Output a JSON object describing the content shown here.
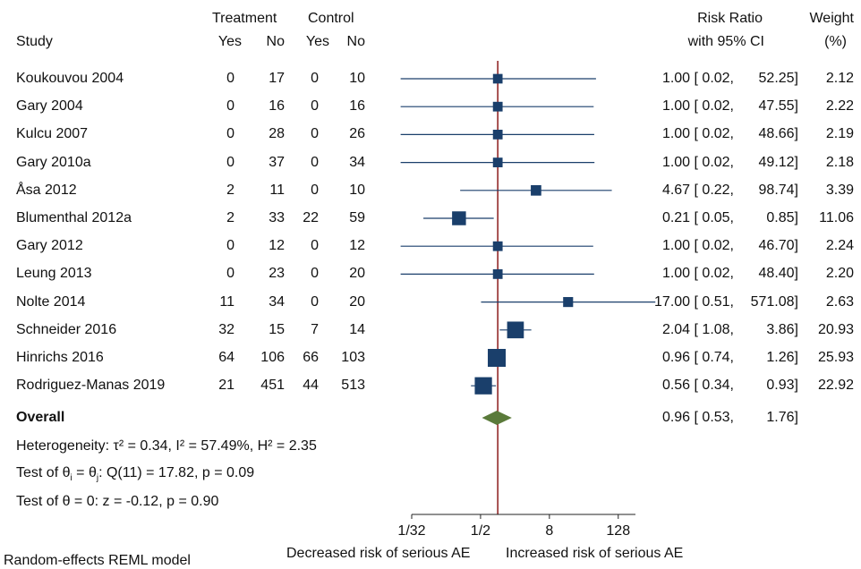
{
  "headers": {
    "study": "Study",
    "treatment": "Treatment",
    "control": "Control",
    "yes1": "Yes",
    "no1": "No",
    "yes2": "Yes",
    "no2": "No",
    "rr_line1": "Risk Ratio",
    "rr_line2": "with 95% CI",
    "weight_line1": "Weight",
    "weight_line2": "(%)"
  },
  "overall": {
    "label": "Overall",
    "text": "0.96 [ 0.53,",
    "upper": "1.76]"
  },
  "heterogeneity": "Heterogeneity: τ² = 0.34, I² = 57.49%, H² = 2.35",
  "test_theta_equal": {
    "prefix": "Test of θ",
    "sub_i": "i",
    "eq": " = θ",
    "sub_j": "j",
    "rest": ": Q(11) = 17.82, p = 0.09"
  },
  "test_theta_zero": "Test of θ = 0: z = -0.12, p = 0.90",
  "model_note": "Random-effects REML model",
  "xaxis": {
    "left_label": "Decreased risk of serious AE",
    "right_label": "Increased risk of serious AE"
  },
  "colors": {
    "marker": "#1a3f6b",
    "diamond": "#5a7a3a",
    "null_line": "#8b1a1a",
    "axis": "#222222"
  },
  "chart_data": {
    "type": "forest",
    "scale": "log2",
    "xlim": [
      0.03125,
      256
    ],
    "ticks": [
      {
        "value": 0.03125,
        "label": "1/32"
      },
      {
        "value": 0.5,
        "label": "1/2"
      },
      {
        "value": 8,
        "label": "8"
      },
      {
        "value": 128,
        "label": "128"
      }
    ],
    "null_value": 1,
    "rows": [
      {
        "study": "Koukouvou 2004",
        "t_yes": "0",
        "t_no": "17",
        "c_yes": "0",
        "c_no": "10",
        "rr": 1.0,
        "lo": 0.02,
        "hi": 52.25,
        "ci_text": "1.00 [ 0.02,",
        "hi_text": "52.25]",
        "weight": "2.12"
      },
      {
        "study": "Gary 2004",
        "t_yes": "0",
        "t_no": "16",
        "c_yes": "0",
        "c_no": "16",
        "rr": 1.0,
        "lo": 0.02,
        "hi": 47.55,
        "ci_text": "1.00 [ 0.02,",
        "hi_text": "47.55]",
        "weight": "2.22"
      },
      {
        "study": "Kulcu 2007",
        "t_yes": "0",
        "t_no": "28",
        "c_yes": "0",
        "c_no": "26",
        "rr": 1.0,
        "lo": 0.02,
        "hi": 48.66,
        "ci_text": "1.00 [ 0.02,",
        "hi_text": "48.66]",
        "weight": "2.19"
      },
      {
        "study": "Gary 2010a",
        "t_yes": "0",
        "t_no": "37",
        "c_yes": "0",
        "c_no": "34",
        "rr": 1.0,
        "lo": 0.02,
        "hi": 49.12,
        "ci_text": "1.00 [ 0.02,",
        "hi_text": "49.12]",
        "weight": "2.18"
      },
      {
        "study": "Åsa 2012",
        "t_yes": "2",
        "t_no": "11",
        "c_yes": "0",
        "c_no": "10",
        "rr": 4.67,
        "lo": 0.22,
        "hi": 98.74,
        "ci_text": "4.67 [ 0.22,",
        "hi_text": "98.74]",
        "weight": "3.39"
      },
      {
        "study": "Blumenthal 2012a",
        "t_yes": "2",
        "t_no": "33",
        "c_yes": "22",
        "c_no": "59",
        "rr": 0.21,
        "lo": 0.05,
        "hi": 0.85,
        "ci_text": "0.21 [ 0.05,",
        "hi_text": "0.85]",
        "weight": "11.06"
      },
      {
        "study": "Gary 2012",
        "t_yes": "0",
        "t_no": "12",
        "c_yes": "0",
        "c_no": "12",
        "rr": 1.0,
        "lo": 0.02,
        "hi": 46.7,
        "ci_text": "1.00 [ 0.02,",
        "hi_text": "46.70]",
        "weight": "2.24"
      },
      {
        "study": "Leung 2013",
        "t_yes": "0",
        "t_no": "23",
        "c_yes": "0",
        "c_no": "20",
        "rr": 1.0,
        "lo": 0.02,
        "hi": 48.4,
        "ci_text": "1.00 [ 0.02,",
        "hi_text": "48.40]",
        "weight": "2.20"
      },
      {
        "study": "Nolte 2014",
        "t_yes": "11",
        "t_no": "34",
        "c_yes": "0",
        "c_no": "20",
        "rr": 17.0,
        "lo": 0.51,
        "hi": 571.08,
        "ci_text": "17.00 [ 0.51,",
        "hi_text": "571.08]",
        "weight": "2.63"
      },
      {
        "study": "Schneider 2016",
        "t_yes": "32",
        "t_no": "15",
        "c_yes": "7",
        "c_no": "14",
        "rr": 2.04,
        "lo": 1.08,
        "hi": 3.86,
        "ci_text": "2.04 [ 1.08,",
        "hi_text": "3.86]",
        "weight": "20.93"
      },
      {
        "study": "Hinrichs 2016",
        "t_yes": "64",
        "t_no": "106",
        "c_yes": "66",
        "c_no": "103",
        "rr": 0.96,
        "lo": 0.74,
        "hi": 1.26,
        "ci_text": "0.96 [ 0.74,",
        "hi_text": "1.26]",
        "weight": "25.93"
      },
      {
        "study": "Rodriguez-Manas 2019",
        "t_yes": "21",
        "t_no": "451",
        "c_yes": "44",
        "c_no": "513",
        "rr": 0.56,
        "lo": 0.34,
        "hi": 0.93,
        "ci_text": "0.56 [ 0.34,",
        "hi_text": "0.93]",
        "weight": "22.92"
      }
    ],
    "overall": {
      "rr": 0.96,
      "lo": 0.53,
      "hi": 1.76
    }
  }
}
